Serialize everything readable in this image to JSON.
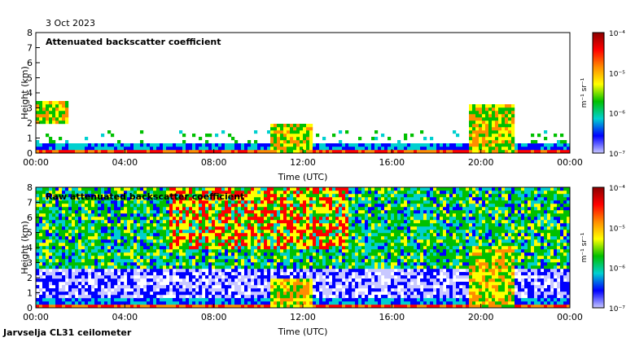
{
  "date": "3 Oct 2023",
  "footer": "Jarvselja CL31 ceilometer",
  "colorbar": {
    "unit": "m⁻¹ sr⁻¹",
    "ticks": [
      "10⁻⁴",
      "10⁻⁵",
      "10⁻⁶",
      "10⁻⁷"
    ],
    "colors": [
      "#8b0000",
      "#ff0000",
      "#ff8c00",
      "#ffff00",
      "#00c000",
      "#00d0d0",
      "#0000ff",
      "#c8c8ff"
    ]
  },
  "chart_data": [
    {
      "type": "heatmap",
      "title": "Attenuated backscatter coefficient",
      "xlabel": "Time (UTC)",
      "ylabel": "Height (km)",
      "xlim": [
        0,
        24
      ],
      "ylim": [
        0,
        8
      ],
      "xticks": [
        0,
        4,
        8,
        12,
        16,
        20,
        24
      ],
      "xtick_labels": [
        "00:00",
        "04:00",
        "08:00",
        "12:00",
        "16:00",
        "20:00",
        "00:00"
      ],
      "yticks": [
        0,
        1,
        2,
        3,
        4,
        5,
        6,
        7,
        8
      ],
      "ytick_labels": [
        "0",
        "1",
        "2",
        "3",
        "4",
        "5",
        "6",
        "7",
        "8"
      ],
      "colorscale": "log",
      "clim": [
        1e-07,
        0.0001
      ],
      "features": [
        {
          "name": "boundary layer",
          "time": [
            0,
            24
          ],
          "height": [
            0,
            0.7
          ]
        },
        {
          "name": "cloud",
          "time": [
            0,
            1.5
          ],
          "height": [
            2,
            3.5
          ]
        },
        {
          "name": "cloud",
          "time": [
            10.5,
            12.5
          ],
          "height": [
            0,
            2
          ]
        },
        {
          "name": "cloud",
          "time": [
            19.5,
            21.5
          ],
          "height": [
            0,
            3.2
          ]
        }
      ]
    },
    {
      "type": "heatmap",
      "title": "Raw attenuated backscatter coefficient",
      "xlabel": "Time (UTC)",
      "ylabel": "Height (km)",
      "xlim": [
        0,
        24
      ],
      "ylim": [
        0,
        8
      ],
      "xticks": [
        0,
        4,
        8,
        12,
        16,
        20,
        24
      ],
      "xtick_labels": [
        "00:00",
        "04:00",
        "08:00",
        "12:00",
        "16:00",
        "20:00",
        "00:00"
      ],
      "yticks": [
        0,
        1,
        2,
        3,
        4,
        5,
        6,
        7,
        8
      ],
      "ytick_labels": [
        "0",
        "1",
        "2",
        "3",
        "4",
        "5",
        "6",
        "7",
        "8"
      ],
      "colorscale": "log",
      "clim": [
        1e-07,
        0.0001
      ],
      "features": [
        {
          "name": "noise high",
          "time": [
            6,
            14
          ],
          "height": [
            4,
            8
          ]
        },
        {
          "name": "boundary layer",
          "time": [
            0,
            24
          ],
          "height": [
            0,
            0.7
          ]
        },
        {
          "name": "cloud",
          "time": [
            10.5,
            12.5
          ],
          "height": [
            0,
            2
          ]
        },
        {
          "name": "cloud",
          "time": [
            19.5,
            21.5
          ],
          "height": [
            0,
            4
          ]
        }
      ]
    }
  ]
}
